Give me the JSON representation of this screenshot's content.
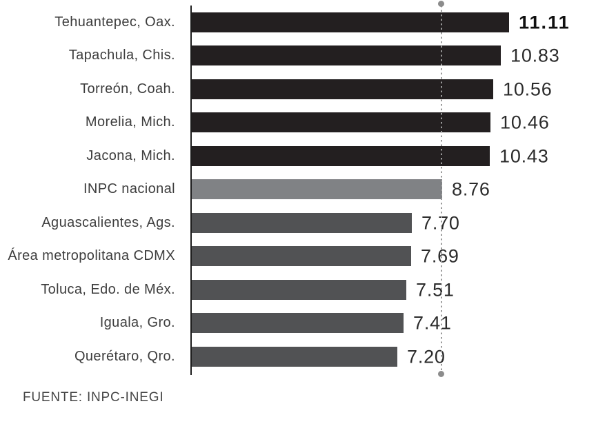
{
  "chart_data": {
    "type": "bar",
    "orientation": "horizontal",
    "title": "",
    "xlabel": "",
    "ylabel": "",
    "categories": [
      "Tehuantepec, Oax.",
      "Tapachula, Chis.",
      "Torreón, Coah.",
      "Morelia, Mich.",
      "Jacona, Mich.",
      "INPC nacional",
      "Aguascalientes, Ags.",
      "Área metropolitana CDMX",
      "Toluca, Edo. de Méx.",
      "Iguala, Gro.",
      "Querétaro, Qro."
    ],
    "values": [
      11.11,
      10.83,
      10.56,
      10.46,
      10.43,
      8.76,
      7.7,
      7.69,
      7.51,
      7.41,
      7.2
    ],
    "value_labels": [
      "11.11",
      "10.83",
      "10.56",
      "10.46",
      "10.43",
      "8.76",
      "7.70",
      "7.69",
      "7.51",
      "7.41",
      "7.20"
    ],
    "bar_tones": [
      "dark",
      "dark",
      "dark",
      "dark",
      "dark",
      "reference",
      "medium",
      "medium",
      "medium",
      "medium",
      "medium"
    ],
    "emphasis_index": 0,
    "reference_line_value": 8.76,
    "xlim": [
      0,
      14.2
    ],
    "grid": false,
    "legend": "none",
    "source": "FUENTE: INPC-INEGI"
  },
  "colors": {
    "bar_dark": "#231f20",
    "bar_reference": "#808285",
    "bar_medium": "#515254",
    "axis": "#1c1c1c",
    "reference_line": "#9a9a9a",
    "reference_dot": "#8c8c8c",
    "label_text": "#3d3d3d",
    "value_text": "#2b2b2b"
  }
}
